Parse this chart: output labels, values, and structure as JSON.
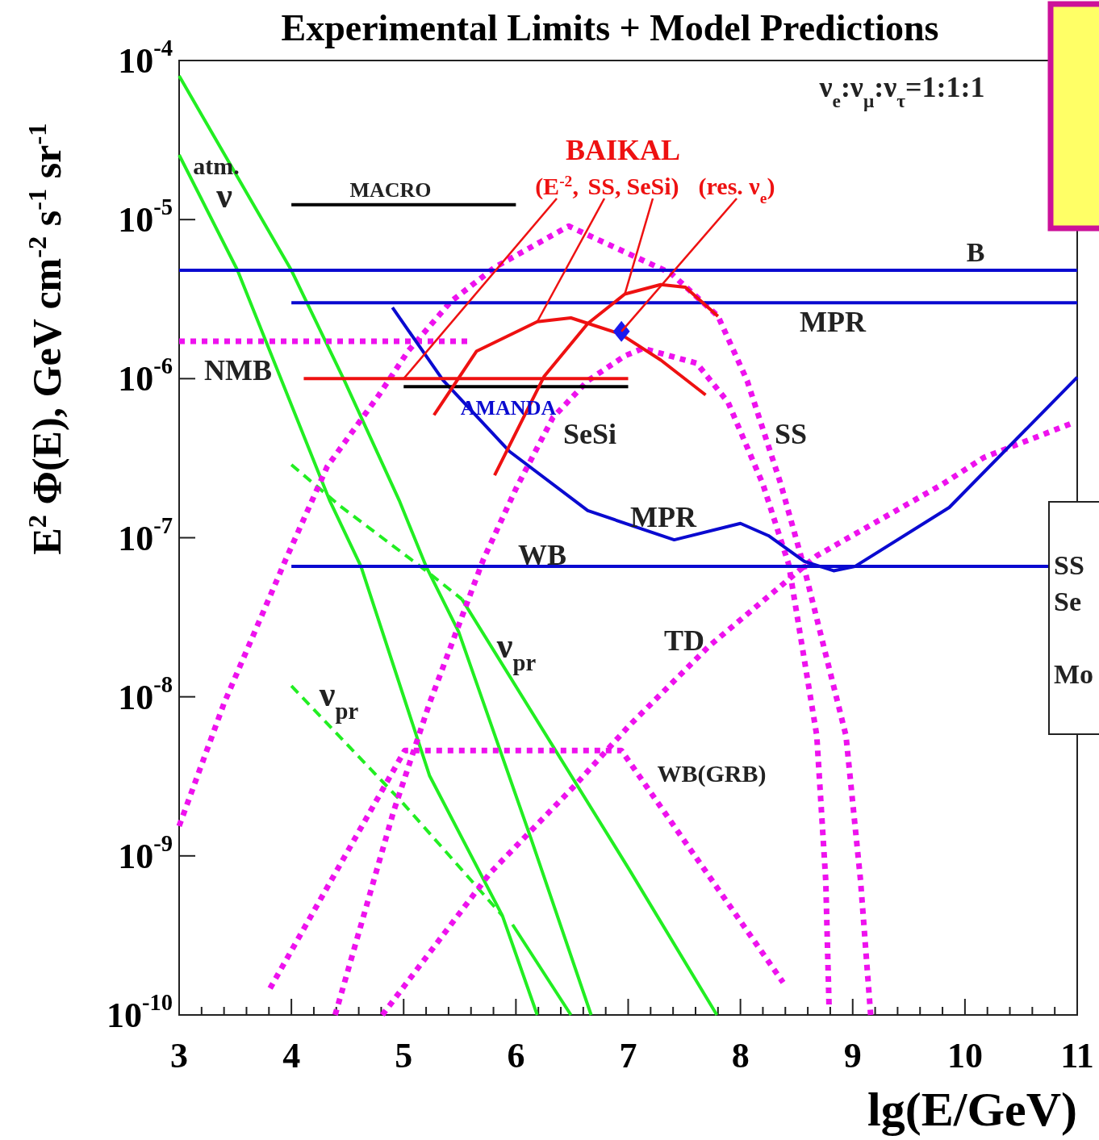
{
  "chart_data": {
    "type": "line",
    "title": "Experimental Limits + Model Predictions",
    "xlabel": "lg(E/GeV)",
    "ylabel": "E$^{2}$ Φ(E), GeV cm$^{-2}$ s$^{-1}$ sr$^{-1}$",
    "log": true,
    "grid": false,
    "xlim": [
      3,
      11
    ],
    "ylim": [
      1e-10,
      0.0001
    ],
    "xticks": [
      3,
      {
        "value": 3.2,
        "label": null
      },
      {
        "value": 3.4,
        "label": null
      },
      {
        "value": 3.6,
        "label": null
      },
      {
        "value": 3.8,
        "label": null
      },
      4,
      {
        "value": 4.2,
        "label": null
      },
      {
        "value": 4.4,
        "label": null
      },
      {
        "value": 4.6,
        "label": null
      },
      {
        "value": 4.8,
        "label": null
      },
      5,
      {
        "value": 5.2,
        "label": null
      },
      {
        "value": 5.4,
        "label": null
      },
      {
        "value": 5.6,
        "label": null
      },
      {
        "value": 5.8,
        "label": null
      },
      6,
      {
        "value": 6.2,
        "label": null
      },
      {
        "value": 6.4,
        "label": null
      },
      {
        "value": 6.6,
        "label": null
      },
      {
        "value": 6.8,
        "label": null
      },
      7,
      {
        "value": 7.2,
        "label": null
      },
      {
        "value": 7.4,
        "label": null
      },
      {
        "value": 7.6,
        "label": null
      },
      {
        "value": 7.8,
        "label": null
      },
      8,
      {
        "value": 8.2,
        "label": null
      },
      {
        "value": 8.4,
        "label": null
      },
      {
        "value": 8.6,
        "label": null
      },
      {
        "value": 8.8,
        "label": null
      },
      9,
      {
        "value": 9.2,
        "label": null
      },
      {
        "value": 9.4,
        "label": null
      },
      {
        "value": 9.6,
        "label": null
      },
      {
        "value": 9.8,
        "label": null
      },
      10,
      {
        "value": 10.2,
        "label": null
      },
      {
        "value": 10.4,
        "label": null
      },
      {
        "value": 10.6,
        "label": null
      },
      {
        "value": 10.8,
        "label": null
      },
      11
    ],
    "yticks": [
      {
        "value": 1e-10,
        "label": "10$^{-10}$"
      },
      {
        "value": 1e-09,
        "label": "10$^{-9}$"
      },
      {
        "value": 1e-08,
        "label": "10$^{-8}$"
      },
      {
        "value": 1e-07,
        "label": "10$^{-7}$"
      },
      {
        "value": 1e-06,
        "label": "10$^{-6}$"
      },
      {
        "value": 1e-05,
        "label": "10$^{-5}$"
      },
      {
        "value": 0.0001,
        "label": "10$^{-4}$"
      }
    ],
    "series": [
      {
        "color": "#22ee22",
        "line_style": "solid",
        "x": [
          3.0,
          4.0,
          4.47,
          4.96,
          5.2,
          5.49,
          6.13,
          6.67
        ],
        "values": [
          8e-05,
          4.8e-06,
          9.8e-07,
          1.72e-07,
          6.6e-08,
          2.56e-08,
          1.31e-09,
          1e-10
        ]
      },
      {
        "color": "#22ee22",
        "line_style": "solid",
        "x": [
          3.0,
          3.52,
          4.34,
          4.62,
          5.23,
          5.88,
          6.19
        ],
        "values": [
          2.55e-05,
          4.8e-06,
          1.72e-07,
          6.6e-08,
          3.2e-09,
          4.2e-10,
          1e-10
        ]
      },
      {
        "color": "#22ee22",
        "line_style": "dashed",
        "x": [
          4.0,
          4.43,
          5.2,
          5.52
        ],
        "values": [
          2.88e-07,
          1.59e-07,
          6.2e-08,
          4.1e-08
        ]
      },
      {
        "color": "#22ee22",
        "line_style": "solid",
        "x": [
          5.52,
          7.01,
          7.79
        ],
        "values": [
          4.1e-08,
          8.2e-10,
          1e-10
        ]
      },
      {
        "color": "#22ee22",
        "line_style": "dashed",
        "x": [
          4.0,
          4.98,
          5.88
        ],
        "values": [
          1.17e-08,
          2.2e-09,
          4.2e-10
        ]
      },
      {
        "color": "#22ee22",
        "line_style": "solid",
        "x": [
          5.97,
          6.49
        ],
        "values": [
          3.7e-10,
          1e-10
        ]
      },
      {
        "color": "#ee11ee",
        "line_style": "dotted",
        "x": [
          3.0,
          3.4,
          3.95,
          4.32,
          4.78,
          5.04,
          5.42,
          5.81,
          6.47,
          7.38,
          7.8,
          8.06,
          8.36,
          8.56,
          8.94,
          9.07,
          9.16
        ],
        "values": [
          1.54e-09,
          9.1e-09,
          7.3e-08,
          2.81e-07,
          7.9e-07,
          1.49e-06,
          3.05e-06,
          5e-06,
          9.1e-06,
          4.6e-06,
          2.47e-06,
          9.7e-07,
          2.17e-07,
          6.8e-08,
          5.7e-09,
          7e-10,
          1e-10
        ]
      },
      {
        "color": "#ee11ee",
        "line_style": "dotted",
        "x": [
          4.39,
          4.91,
          5.23,
          5.71,
          6.0,
          6.33,
          6.64,
          6.97,
          7.13,
          7.61,
          7.89,
          8.2,
          8.43,
          8.68,
          8.76,
          8.79
        ],
        "values": [
          1e-10,
          1.9e-09,
          9.1e-09,
          7.3e-08,
          2.03e-07,
          5.7e-07,
          9.7e-07,
          1.39e-06,
          1.55e-06,
          1.25e-06,
          7.1e-07,
          2.17e-07,
          6.8e-08,
          5.7e-09,
          7e-10,
          1.1e-10
        ]
      },
      {
        "color": "#ee11ee",
        "line_style": "dotted",
        "x": [
          4.81,
          5.77,
          6.51,
          7.01,
          7.72,
          8.68,
          9.8,
          10.17,
          10.94
        ],
        "values": [
          1e-10,
          7.8e-10,
          2.7e-09,
          6.6e-09,
          2.08e-08,
          7.7e-08,
          2.17e-07,
          3.2e-07,
          5.2e-07
        ]
      },
      {
        "color": "#ee11ee",
        "line_style": "dotted",
        "x": [
          3.81,
          5.01,
          6.94,
          8.38
        ],
        "values": [
          1.47e-10,
          4.6e-09,
          4.6e-09,
          1.6e-10
        ]
      },
      {
        "color": "#ee11ee",
        "line_style": "dotted",
        "x": [
          3.0,
          5.61
        ],
        "values": [
          1.72e-06,
          1.72e-06
        ]
      },
      {
        "color": "#0a0ad0",
        "line_style": "solid",
        "x": [
          3.0,
          11.0
        ],
        "values": [
          4.8e-06,
          4.8e-06
        ]
      },
      {
        "color": "#0a0ad0",
        "line_style": "solid",
        "x": [
          4.0,
          11.0
        ],
        "values": [
          3e-06,
          3e-06
        ]
      },
      {
        "color": "#0a0ad0",
        "line_style": "solid",
        "x": [
          4.0,
          10.75
        ],
        "values": [
          6.6e-08,
          6.6e-08
        ]
      },
      {
        "color": "#0a0ad0",
        "line_style": "solid",
        "x": [
          4.9,
          5.35,
          5.94,
          6.64,
          7.41,
          8.0,
          8.25,
          8.57,
          8.83,
          9.02,
          9.86,
          11.0
        ],
        "values": [
          2.8e-06,
          9.8e-07,
          3.5e-07,
          1.48e-07,
          9.7e-08,
          1.23e-07,
          1.03e-07,
          7.1e-08,
          6.2e-08,
          6.6e-08,
          1.55e-07,
          1.02e-06
        ]
      },
      {
        "color": "#000000",
        "line_style": "solid",
        "x": [
          4.0,
          6.0
        ],
        "values": [
          1.24e-05,
          1.24e-05
        ]
      },
      {
        "color": "#000000",
        "line_style": "solid",
        "x": [
          5.0,
          7.0
        ],
        "values": [
          8.9e-07,
          8.9e-07
        ]
      },
      {
        "color": "#ee1111",
        "line_style": "solid",
        "x": [
          4.11,
          5.0,
          7.0
        ],
        "values": [
          1e-06,
          1e-06,
          1e-06
        ]
      },
      {
        "color": "#ee1111",
        "line_style": "solid",
        "x": [
          5.27,
          5.65,
          6.19,
          6.49,
          6.93,
          7.29,
          7.69
        ],
        "values": [
          5.9e-07,
          1.49e-06,
          2.28e-06,
          2.41e-06,
          1.91e-06,
          1.31e-06,
          7.9e-07
        ]
      },
      {
        "color": "#ee1111",
        "line_style": "solid",
        "x": [
          5.81,
          6.25,
          6.64,
          6.97,
          7.29,
          7.51,
          7.8
        ],
        "values": [
          2.47e-07,
          1.03e-06,
          2.22e-06,
          3.4e-06,
          3.9e-06,
          3.76e-06,
          2.47e-06
        ]
      },
      {
        "type": "scatter",
        "color": "#1a1aee",
        "marker": "diamond",
        "x": [
          6.94
        ],
        "values": [
          1.98e-06
        ]
      }
    ],
    "annotations": [
      "ν$_{e}$:ν$_{μ}$:ν$_{τ}$=1:1:1",
      "atm.",
      "ν",
      "MACRO",
      "BAIKAL",
      {
        "text": "(E$^{-2}$,",
        "x": 5.0,
        "y": 1e-06
      },
      {
        "text": "SS,",
        "x": 6.19,
        "y": 2.28e-06
      },
      {
        "text": "SeSi)",
        "x": 6.97,
        "y": 3.4e-06
      },
      {
        "text": "(res. ν$_{e}$)",
        "x": 6.94,
        "y": 1.98e-06
      },
      "B",
      "MPR",
      "NMB",
      "AMANDA",
      "SeSi",
      "SS",
      "MPR",
      "WB",
      "ν$_{pr}$",
      "TD",
      "ν$_{pr}$",
      "WB(GRB)",
      "SS",
      "Se",
      "Mo"
    ]
  }
}
